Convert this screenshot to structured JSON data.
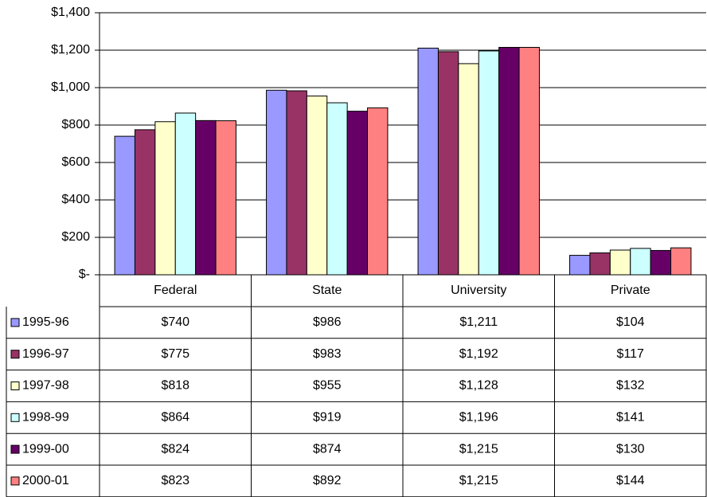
{
  "chart_data": {
    "type": "bar",
    "categories": [
      "Federal",
      "State",
      "University",
      "Private"
    ],
    "series": [
      {
        "name": "1995-96",
        "color": "#9999ff",
        "values": [
          740,
          986,
          1211,
          104
        ],
        "value_labels": [
          "$740",
          "$986",
          "$1,211",
          "$104"
        ]
      },
      {
        "name": "1996-97",
        "color": "#993366",
        "values": [
          775,
          983,
          1192,
          117
        ],
        "value_labels": [
          "$775",
          "$983",
          "$1,192",
          "$117"
        ]
      },
      {
        "name": "1997-98",
        "color": "#ffffcc",
        "values": [
          818,
          955,
          1128,
          132
        ],
        "value_labels": [
          "$818",
          "$955",
          "$1,128",
          "$132"
        ]
      },
      {
        "name": "1998-99",
        "color": "#ccffff",
        "values": [
          864,
          919,
          1196,
          141
        ],
        "value_labels": [
          "$864",
          "$919",
          "$1,196",
          "$141"
        ]
      },
      {
        "name": "1999-00",
        "color": "#660066",
        "values": [
          824,
          874,
          1215,
          130
        ],
        "value_labels": [
          "$824",
          "$874",
          "$1,215",
          "$130"
        ]
      },
      {
        "name": "2000-01",
        "color": "#ff8080",
        "values": [
          823,
          892,
          1215,
          144
        ],
        "value_labels": [
          "$823",
          "$892",
          "$1,215",
          "$144"
        ]
      }
    ],
    "ylim": [
      0,
      1400
    ],
    "yticks": [
      {
        "value": 0,
        "label": "$-"
      },
      {
        "value": 200,
        "label": "$200"
      },
      {
        "value": 400,
        "label": "$400"
      },
      {
        "value": 600,
        "label": "$600"
      },
      {
        "value": 800,
        "label": "$800"
      },
      {
        "value": 1000,
        "label": "$1,000"
      },
      {
        "value": 1200,
        "label": "$1,200"
      },
      {
        "value": 1400,
        "label": "$1,400"
      }
    ],
    "grid": true
  }
}
